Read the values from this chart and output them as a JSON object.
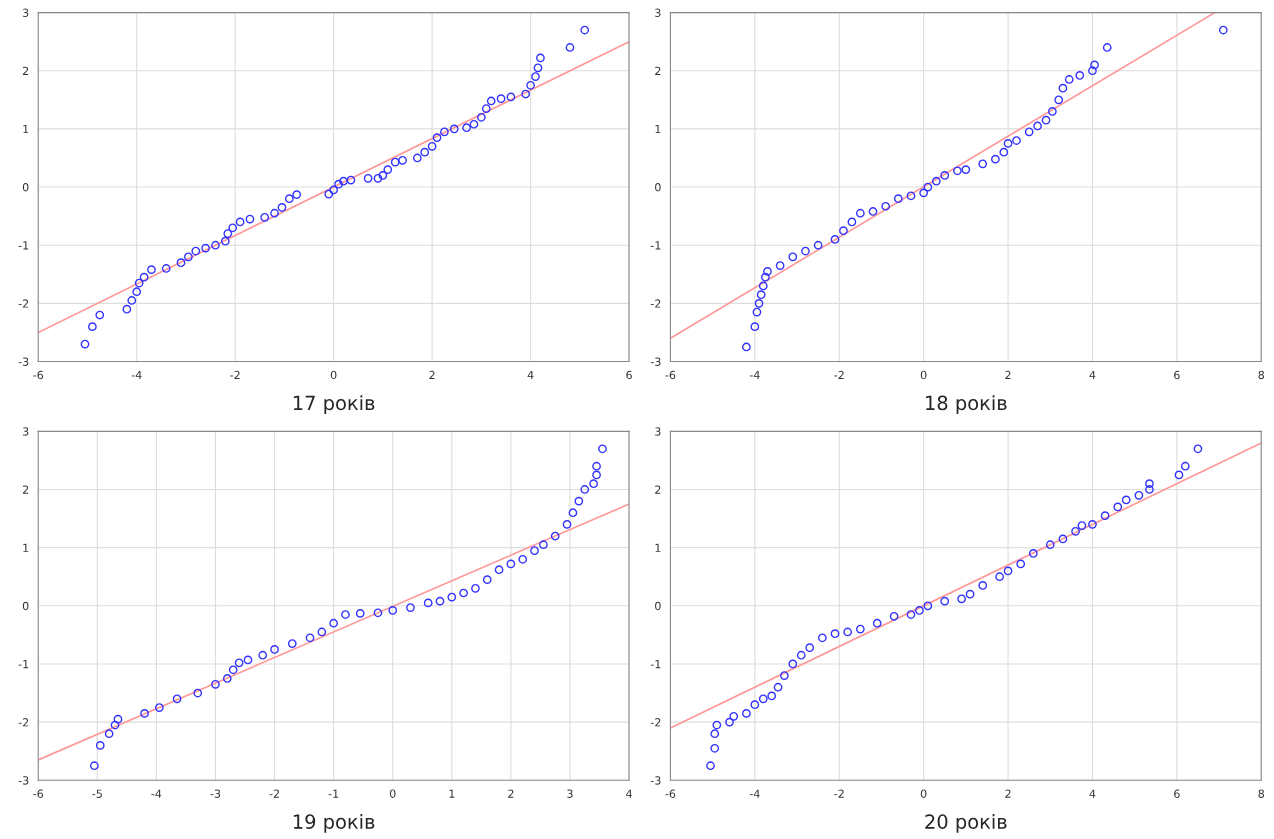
{
  "chart_data": [
    {
      "type": "scatter",
      "xlabel": "17 років",
      "xlim": [
        -6,
        6
      ],
      "xticks": [
        -6,
        -4,
        -2,
        0,
        2,
        4,
        6
      ],
      "ylim": [
        -3,
        3
      ],
      "yticks": [
        -3,
        -2,
        -1,
        0,
        1,
        2,
        3
      ],
      "grid": true,
      "series": [
        {
          "color": "#3333ff",
          "marker": "circle",
          "x": [
            -5.05,
            -4.9,
            -4.75,
            -4.2,
            -4.1,
            -4.0,
            -3.95,
            -3.85,
            -3.7,
            -3.4,
            -3.1,
            -2.95,
            -2.8,
            -2.6,
            -2.4,
            -2.2,
            -2.15,
            -2.05,
            -1.9,
            -1.7,
            -1.4,
            -1.2,
            -1.05,
            -0.9,
            -0.75,
            -0.1,
            0.0,
            0.1,
            0.2,
            0.35,
            0.7,
            0.9,
            1.0,
            1.1,
            1.25,
            1.4,
            1.7,
            1.85,
            2.0,
            2.1,
            2.25,
            2.45,
            2.7,
            2.85,
            3.0,
            3.1,
            3.2,
            3.4,
            3.6,
            3.9,
            4.0,
            4.1,
            4.15,
            4.2,
            4.8,
            5.1
          ],
          "values": [
            -2.7,
            -2.4,
            -2.2,
            -2.1,
            -1.95,
            -1.8,
            -1.65,
            -1.55,
            -1.42,
            -1.4,
            -1.3,
            -1.2,
            -1.1,
            -1.05,
            -1.0,
            -0.93,
            -0.8,
            -0.7,
            -0.6,
            -0.55,
            -0.52,
            -0.45,
            -0.35,
            -0.2,
            -0.13,
            -0.12,
            -0.05,
            0.05,
            0.1,
            0.12,
            0.15,
            0.15,
            0.2,
            0.3,
            0.43,
            0.46,
            0.5,
            0.6,
            0.7,
            0.85,
            0.95,
            1.0,
            1.02,
            1.08,
            1.2,
            1.35,
            1.48,
            1.52,
            1.55,
            1.6,
            1.75,
            1.9,
            2.05,
            2.22,
            2.4,
            2.7
          ]
        },
        {
          "type": "line",
          "color": "#ff9999",
          "x": [
            -6,
            6
          ],
          "values": [
            -2.5,
            2.5
          ]
        }
      ]
    },
    {
      "type": "scatter",
      "xlabel": "18 років",
      "xlim": [
        -6,
        8
      ],
      "xticks": [
        -6,
        -4,
        -2,
        0,
        2,
        4,
        6,
        8
      ],
      "ylim": [
        -3,
        3
      ],
      "yticks": [
        -3,
        -2,
        -1,
        0,
        1,
        2,
        3
      ],
      "grid": true,
      "series": [
        {
          "color": "#3333ff",
          "marker": "circle",
          "x": [
            -4.2,
            -4.0,
            -3.95,
            -3.9,
            -3.85,
            -3.8,
            -3.75,
            -3.7,
            -3.4,
            -3.1,
            -2.8,
            -2.5,
            -2.1,
            -1.9,
            -1.7,
            -1.5,
            -1.2,
            -0.9,
            -0.6,
            -0.3,
            0.0,
            0.1,
            0.3,
            0.5,
            0.8,
            1.0,
            1.4,
            1.7,
            1.9,
            2.0,
            2.2,
            2.5,
            2.7,
            2.9,
            3.05,
            3.2,
            3.3,
            3.45,
            3.7,
            4.0,
            4.05,
            4.35,
            7.1
          ],
          "values": [
            -2.75,
            -2.4,
            -2.15,
            -2.0,
            -1.85,
            -1.7,
            -1.55,
            -1.45,
            -1.35,
            -1.2,
            -1.1,
            -1.0,
            -0.9,
            -0.75,
            -0.6,
            -0.45,
            -0.42,
            -0.33,
            -0.2,
            -0.15,
            -0.1,
            0.0,
            0.1,
            0.2,
            0.28,
            0.3,
            0.4,
            0.48,
            0.6,
            0.75,
            0.8,
            0.95,
            1.05,
            1.15,
            1.3,
            1.5,
            1.7,
            1.85,
            1.92,
            2.0,
            2.1,
            2.4,
            2.7
          ]
        },
        {
          "type": "line",
          "color": "#ff9999",
          "x": [
            -6,
            6.9
          ],
          "values": [
            -2.6,
            3
          ]
        }
      ]
    },
    {
      "type": "scatter",
      "xlabel": "19 років",
      "xlim": [
        -6,
        4
      ],
      "xticks": [
        -6,
        -5,
        -4,
        -3,
        -2,
        -1,
        0,
        1,
        2,
        3,
        4
      ],
      "ylim": [
        -3,
        3
      ],
      "yticks": [
        -3,
        -2,
        -1,
        0,
        1,
        2,
        3
      ],
      "grid": true,
      "series": [
        {
          "color": "#3333ff",
          "marker": "circle",
          "x": [
            -5.05,
            -4.95,
            -4.8,
            -4.7,
            -4.65,
            -4.2,
            -3.95,
            -3.65,
            -3.3,
            -3.0,
            -2.8,
            -2.7,
            -2.6,
            -2.45,
            -2.2,
            -2.0,
            -1.7,
            -1.4,
            -1.2,
            -1.0,
            -0.8,
            -0.55,
            -0.25,
            0.0,
            0.3,
            0.6,
            0.8,
            1.0,
            1.2,
            1.4,
            1.6,
            1.8,
            2.0,
            2.2,
            2.4,
            2.55,
            2.75,
            2.95,
            3.05,
            3.15,
            3.25,
            3.4,
            3.45,
            3.45,
            3.55
          ],
          "values": [
            -2.75,
            -2.4,
            -2.2,
            -2.05,
            -1.95,
            -1.85,
            -1.75,
            -1.6,
            -1.5,
            -1.35,
            -1.25,
            -1.1,
            -0.98,
            -0.93,
            -0.85,
            -0.75,
            -0.65,
            -0.55,
            -0.45,
            -0.3,
            -0.15,
            -0.13,
            -0.12,
            -0.08,
            -0.03,
            0.05,
            0.08,
            0.15,
            0.22,
            0.3,
            0.45,
            0.62,
            0.72,
            0.8,
            0.95,
            1.05,
            1.2,
            1.4,
            1.6,
            1.8,
            2.0,
            2.1,
            2.25,
            2.4,
            2.7
          ]
        },
        {
          "type": "line",
          "color": "#ff9999",
          "x": [
            -6,
            4
          ],
          "values": [
            -2.65,
            1.75
          ]
        }
      ]
    },
    {
      "type": "scatter",
      "xlabel": "20 років",
      "xlim": [
        -6,
        8
      ],
      "xticks": [
        -6,
        -4,
        -2,
        0,
        2,
        4,
        6,
        8
      ],
      "ylim": [
        -3,
        3
      ],
      "yticks": [
        -3,
        -2,
        -1,
        0,
        1,
        2,
        3
      ],
      "grid": true,
      "series": [
        {
          "color": "#3333ff",
          "marker": "circle",
          "x": [
            -5.05,
            -4.95,
            -4.95,
            -4.9,
            -4.6,
            -4.5,
            -4.2,
            -4.0,
            -3.8,
            -3.6,
            -3.45,
            -3.3,
            -3.1,
            -2.9,
            -2.7,
            -2.4,
            -2.1,
            -1.8,
            -1.5,
            -1.1,
            -0.7,
            -0.3,
            -0.1,
            0.1,
            0.5,
            0.9,
            1.1,
            1.4,
            1.8,
            2.0,
            2.3,
            2.6,
            3.0,
            3.3,
            3.6,
            3.75,
            4.0,
            4.3,
            4.6,
            4.8,
            5.1,
            5.35,
            5.35,
            6.05,
            6.2,
            6.5
          ],
          "values": [
            -2.75,
            -2.45,
            -2.2,
            -2.05,
            -2.0,
            -1.9,
            -1.85,
            -1.7,
            -1.6,
            -1.55,
            -1.4,
            -1.2,
            -1.0,
            -0.85,
            -0.72,
            -0.55,
            -0.48,
            -0.45,
            -0.4,
            -0.3,
            -0.18,
            -0.15,
            -0.08,
            0.0,
            0.08,
            0.12,
            0.2,
            0.35,
            0.5,
            0.6,
            0.72,
            0.9,
            1.05,
            1.15,
            1.28,
            1.38,
            1.4,
            1.55,
            1.7,
            1.82,
            1.9,
            2.0,
            2.1,
            2.25,
            2.4,
            2.7
          ]
        },
        {
          "type": "line",
          "color": "#ff9999",
          "x": [
            -6,
            8
          ],
          "values": [
            -2.1,
            2.8
          ]
        }
      ]
    }
  ]
}
